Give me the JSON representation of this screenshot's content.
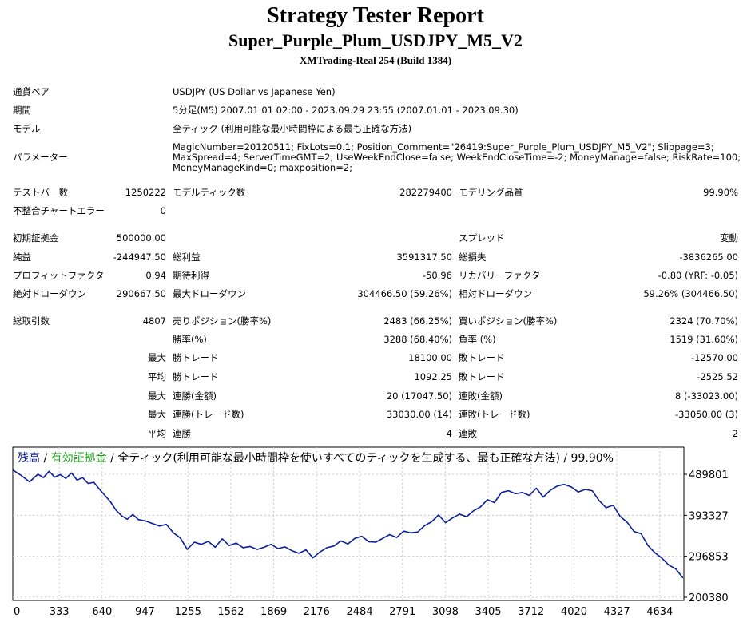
{
  "header": {
    "title": "Strategy Tester Report",
    "subtitle": "Super_Purple_Plum_USDJPY_M5_V2",
    "build": "XMTrading-Real 254 (Build 1384)"
  },
  "info": {
    "pair_label": "通貨ペア",
    "pair_value": "USDJPY (US Dollar vs Japanese Yen)",
    "period_label": "期間",
    "period_value": "5分足(M5) 2007.01.01 02:00 - 2023.09.29 23:55 (2007.01.01 - 2023.09.30)",
    "model_label": "モデル",
    "model_value": "全ティック (利用可能な最小時間枠による最も正確な方法)",
    "params_label": "パラメーター",
    "params_line1": "MagicNumber=20120511; FixLots=0.1; Position_Comment=\"26419:Super_Purple_Plum_USDJPY_M5_V2\"; Slippage=3;",
    "params_line2": "MaxSpread=4; ServerTimeGMT=2; UseWeekEndClose=false; WeekEndCloseTime=-2; MoneyManage=false; RiskRate=100;",
    "params_line3": "MoneyManageKind=0; maxposition=2;"
  },
  "stats": {
    "test_bars_label": "テストバー数",
    "test_bars": "1250222",
    "model_ticks_label": "モデルティック数",
    "model_ticks": "282279400",
    "model_quality_label": "モデリング品質",
    "model_quality": "99.90%",
    "mismatch_label": "不整合チャートエラー",
    "mismatch": "0",
    "initial_deposit_label": "初期証拠金",
    "initial_deposit": "500000.00",
    "spread_label": "スプレッド",
    "spread": "変動",
    "net_profit_label": "純益",
    "net_profit": "-244947.50",
    "gross_profit_label": "総利益",
    "gross_profit": "3591317.50",
    "gross_loss_label": "総損失",
    "gross_loss": "-3836265.00",
    "profit_factor_label": "プロフィットファクタ",
    "profit_factor": "0.94",
    "expected_payoff_label": "期待利得",
    "expected_payoff": "-50.96",
    "recovery_factor_label": "リカバリーファクタ",
    "recovery_factor": "-0.80 (YRF: -0.05)",
    "abs_dd_label": "絶対ドローダウン",
    "abs_dd": "290667.50",
    "max_dd_label": "最大ドローダウン",
    "max_dd": "304466.50 (59.26%)",
    "rel_dd_label": "相対ドローダウン",
    "rel_dd": "59.26% (304466.50)",
    "total_trades_label": "総取引数",
    "total_trades": "4807",
    "short_label": "売りポジション(勝率%)",
    "short": "2483 (66.25%)",
    "long_label": "買いポジション(勝率%)",
    "long": "2324 (70.70%)",
    "win_pct_label": "勝率(%)",
    "win_pct": "3288 (68.40%)",
    "loss_pct_label": "負率 (%)",
    "loss_pct": "1519 (31.60%)",
    "max_prefix": "最大",
    "avg_prefix": "平均",
    "largest_win_label": "勝トレード",
    "largest_win": "18100.00",
    "largest_loss_label": "敗トレード",
    "largest_loss": "-12570.00",
    "avg_win_label": "勝トレード",
    "avg_win": "1092.25",
    "avg_loss_label": "敗トレード",
    "avg_loss": "-2525.52",
    "max_cons_wins_label": "連勝(金額)",
    "max_cons_wins": "20 (17047.50)",
    "max_cons_losses_label": "連敗(金額)",
    "max_cons_losses": "8 (-33023.00)",
    "max_cons_profit_label": "連勝(トレード数)",
    "max_cons_profit": "33030.00 (14)",
    "max_cons_loss_label": "連敗(トレード数)",
    "max_cons_loss": "-33050.00 (3)",
    "avg_cons_wins_label": "連勝",
    "avg_cons_wins": "4",
    "avg_cons_losses_label": "連敗",
    "avg_cons_losses": "2"
  },
  "chart_data": {
    "type": "line",
    "legend_balance": "残高",
    "legend_sep1": " / ",
    "legend_equity": "有効証拠金",
    "legend_rest": " / 全ティック(利用可能な最小時間枠を使いすべてのティックを生成する、最も正確な方法) / 99.90%",
    "x_ticks": [
      "0",
      "333",
      "640",
      "947",
      "1255",
      "1562",
      "1869",
      "2176",
      "2484",
      "2791",
      "3098",
      "3405",
      "3712",
      "4020",
      "4327",
      "4634"
    ],
    "x_tick_values": [
      0,
      333,
      640,
      947,
      1255,
      1562,
      1869,
      2176,
      2484,
      2791,
      3098,
      3405,
      3712,
      4020,
      4327,
      4634
    ],
    "y_ticks": [
      "489801",
      "393327",
      "296853",
      "200380"
    ],
    "y_tick_values": [
      489801,
      393327,
      296853,
      200380
    ],
    "xlim": [
      0,
      4807
    ],
    "ylim": [
      200380,
      489801
    ],
    "grid": true,
    "colors": {
      "balance": "#0a1e96",
      "equity": "#1f9a1f"
    },
    "series": [
      {
        "name": "残高",
        "x": [
          0,
          60,
          120,
          180,
          220,
          260,
          300,
          340,
          380,
          420,
          460,
          500,
          540,
          580,
          620,
          660,
          700,
          740,
          780,
          820,
          860,
          900,
          950,
          1000,
          1050,
          1100,
          1150,
          1200,
          1250,
          1300,
          1350,
          1400,
          1450,
          1500,
          1550,
          1600,
          1650,
          1700,
          1750,
          1800,
          1850,
          1900,
          1950,
          2000,
          2050,
          2100,
          2150,
          2200,
          2250,
          2300,
          2350,
          2400,
          2450,
          2500,
          2550,
          2600,
          2650,
          2700,
          2750,
          2800,
          2850,
          2900,
          2950,
          3000,
          3050,
          3100,
          3150,
          3200,
          3250,
          3300,
          3350,
          3400,
          3450,
          3500,
          3550,
          3600,
          3650,
          3700,
          3750,
          3800,
          3850,
          3900,
          3950,
          4000,
          4050,
          4100,
          4150,
          4200,
          4250,
          4300,
          4350,
          4400,
          4450,
          4500,
          4550,
          4600,
          4650,
          4700,
          4750,
          4800
        ],
        "y": [
          500000,
          487000,
          472000,
          490000,
          482000,
          497000,
          483000,
          489000,
          480000,
          493000,
          476000,
          482000,
          468000,
          471000,
          455000,
          440000,
          425000,
          405000,
          392000,
          384000,
          395000,
          383000,
          380000,
          374000,
          368000,
          372000,
          352000,
          340000,
          313000,
          330000,
          325000,
          332000,
          318000,
          338000,
          322000,
          328000,
          317000,
          320000,
          313000,
          318000,
          325000,
          315000,
          319000,
          310000,
          304000,
          312000,
          293000,
          307000,
          317000,
          321000,
          333000,
          326000,
          339000,
          344000,
          331000,
          330000,
          339000,
          348000,
          341000,
          356000,
          352000,
          354000,
          369000,
          378000,
          394000,
          376000,
          387000,
          396000,
          390000,
          404000,
          413000,
          430000,
          423000,
          447000,
          451000,
          444000,
          447000,
          440000,
          457000,
          436000,
          452000,
          462000,
          466000,
          460000,
          448000,
          454000,
          451000,
          428000,
          411000,
          417000,
          391000,
          377000,
          355000,
          350000,
          322000,
          305000,
          292000,
          276000,
          267000,
          246000
        ]
      }
    ]
  }
}
